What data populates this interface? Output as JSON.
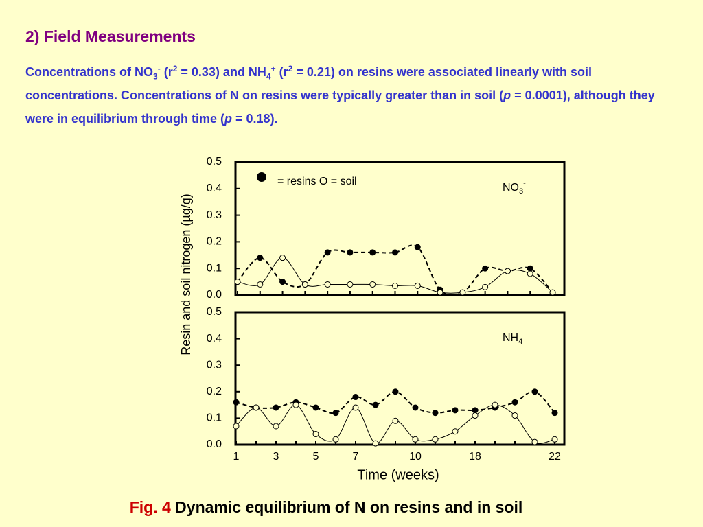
{
  "header": {
    "title": "2) Field Measurements",
    "paragraph": [
      "Concentrations of NO",
      {
        "text": "3",
        "style": "sub"
      },
      {
        "text": "-",
        "style": "sup"
      },
      " (r",
      {
        "text": "2",
        "style": "sup"
      },
      " = 0.33) and NH",
      {
        "text": "4",
        "style": "sub"
      },
      {
        "text": "+",
        "style": "sup"
      },
      " (r",
      {
        "text": "2",
        "style": "sup"
      },
      " = 0.21) on resins were associated linearly with soil concentrations. Concentrations of N on resins were typically greater than in soil (",
      {
        "text": "p",
        "style": "i"
      },
      " = 0.0001), although they were in equilibrium through time (",
      {
        "text": "p",
        "style": "i"
      },
      " = 0.18)."
    ]
  },
  "y_label": "Resin and soil nitrogen (µg/g)",
  "x_label": "Time (weeks)",
  "caption": {
    "fig": "Fig. 4",
    "text": " Dynamic equilibrium of N on resins and in soil"
  },
  "chart_data": [
    {
      "type": "line",
      "legend": "= resins O = soil",
      "annotation": {
        "base": "NO",
        "sub": "3",
        "sup": "-"
      },
      "categories": [
        null,
        null,
        null,
        null,
        null,
        null,
        null,
        null,
        null,
        null,
        null,
        null,
        null,
        null,
        null
      ],
      "series": [
        {
          "color": "#000000",
          "marker": "filled",
          "dash": true,
          "values": [
            0.05,
            0.14,
            0.05,
            0.04,
            0.16,
            0.16,
            0.16,
            0.16,
            0.18,
            0.02,
            0.01,
            0.1,
            0.09,
            0.1,
            0.01
          ]
        },
        {
          "color": "#000000",
          "marker": "open",
          "dash": false,
          "values": [
            0.05,
            0.04,
            0.14,
            0.04,
            0.04,
            0.04,
            0.04,
            0.035,
            0.035,
            0.01,
            0.01,
            0.03,
            0.09,
            0.08,
            0.01
          ]
        }
      ],
      "ylim": [
        0,
        0.5
      ],
      "yticks": [
        {
          "value": 0,
          "label": "0.0"
        },
        0.1,
        0.2,
        0.3,
        0.4,
        0.5
      ]
    },
    {
      "type": "line",
      "annotation": {
        "base": "NH",
        "sub": "4",
        "sup": "+"
      },
      "categories": [
        "1",
        null,
        "3",
        null,
        "5",
        null,
        "7",
        null,
        null,
        "10",
        null,
        null,
        "18",
        null,
        null,
        null,
        "22"
      ],
      "series": [
        {
          "color": "#000000",
          "marker": "filled",
          "dash": true,
          "values": [
            0.16,
            0.14,
            0.14,
            0.16,
            0.14,
            0.12,
            0.18,
            0.15,
            0.2,
            0.14,
            0.12,
            0.13,
            0.13,
            0.14,
            0.16,
            0.2,
            0.12
          ]
        },
        {
          "color": "#000000",
          "marker": "open",
          "dash": false,
          "values": [
            0.07,
            0.14,
            0.07,
            0.15,
            0.04,
            0.02,
            0.14,
            0.005,
            0.09,
            0.02,
            0.02,
            0.05,
            0.11,
            0.15,
            0.11,
            0.01,
            0.02
          ]
        }
      ],
      "ylim": [
        0,
        0.5
      ],
      "yticks": [
        {
          "value": 0,
          "label": "0.0"
        },
        0.1,
        0.2,
        0.3,
        0.4,
        0.5
      ]
    }
  ]
}
